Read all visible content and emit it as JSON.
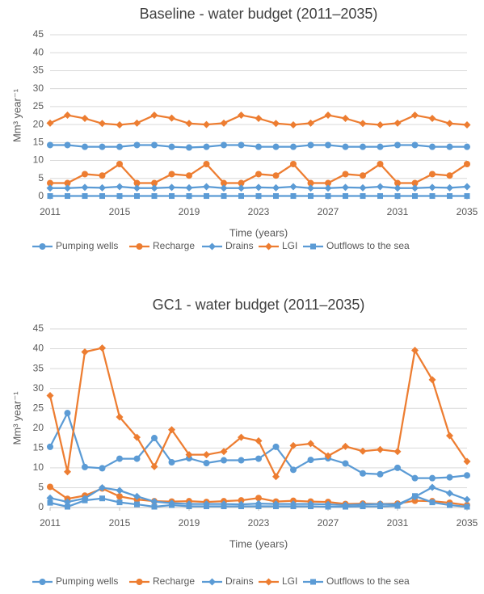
{
  "chart_data": [
    {
      "type": "line",
      "title": "Baseline - water budget (2011–2035)",
      "x_label": "Time (years)",
      "y_label": "Mm³ year⁻¹",
      "x": [
        2011,
        2012,
        2013,
        2014,
        2015,
        2016,
        2017,
        2018,
        2019,
        2020,
        2021,
        2022,
        2023,
        2024,
        2025,
        2026,
        2027,
        2028,
        2029,
        2030,
        2031,
        2032,
        2033,
        2034,
        2035
      ],
      "xlim": [
        2011,
        2035
      ],
      "xticks": [
        2011,
        2015,
        2019,
        2023,
        2027,
        2031,
        2035
      ],
      "ylim": [
        0,
        45
      ],
      "yticks": [
        0,
        5,
        10,
        15,
        20,
        25,
        30,
        35,
        40,
        45
      ],
      "grid": true,
      "legend": "bottom",
      "series": [
        {
          "name": "Pumping wells",
          "color": "#5b9bd5",
          "marker": "circle",
          "values": [
            14.3,
            14.3,
            13.8,
            13.8,
            13.8,
            14.3,
            14.3,
            13.8,
            13.6,
            13.8,
            14.3,
            14.3,
            13.8,
            13.8,
            13.8,
            14.3,
            14.3,
            13.8,
            13.8,
            13.8,
            14.3,
            14.3,
            13.8,
            13.8,
            13.8
          ]
        },
        {
          "name": "Recharge",
          "color": "#ed7d31",
          "marker": "circle",
          "values": [
            3.7,
            3.7,
            6.2,
            5.8,
            9.0,
            3.7,
            3.7,
            6.2,
            5.8,
            9.0,
            3.7,
            3.7,
            6.2,
            5.8,
            9.0,
            3.7,
            3.7,
            6.2,
            5.8,
            9.0,
            3.7,
            3.7,
            6.2,
            5.8,
            9.0
          ]
        },
        {
          "name": "Drains",
          "color": "#5b9bd5",
          "marker": "diamond",
          "values": [
            2.3,
            2.3,
            2.5,
            2.4,
            2.7,
            2.3,
            2.3,
            2.5,
            2.4,
            2.7,
            2.3,
            2.3,
            2.5,
            2.4,
            2.7,
            2.3,
            2.3,
            2.5,
            2.4,
            2.7,
            2.3,
            2.3,
            2.5,
            2.4,
            2.7
          ]
        },
        {
          "name": "LGI",
          "color": "#ed7d31",
          "marker": "diamond",
          "values": [
            20.4,
            22.6,
            21.7,
            20.3,
            19.9,
            20.4,
            22.6,
            21.8,
            20.3,
            20.0,
            20.4,
            22.6,
            21.7,
            20.3,
            19.9,
            20.4,
            22.6,
            21.7,
            20.3,
            19.9,
            20.4,
            22.6,
            21.7,
            20.3,
            19.9
          ]
        },
        {
          "name": "Outflows to the sea",
          "color": "#5b9bd5",
          "marker": "square",
          "values": [
            0.1,
            0.1,
            0.1,
            0.1,
            0.1,
            0.1,
            0.1,
            0.1,
            0.1,
            0.1,
            0.1,
            0.1,
            0.1,
            0.1,
            0.1,
            0.1,
            0.1,
            0.1,
            0.1,
            0.1,
            0.1,
            0.1,
            0.1,
            0.1,
            0.1
          ]
        }
      ]
    },
    {
      "type": "line",
      "title": "GC1 - water budget (2011–2035)",
      "x_label": "Time (years)",
      "y_label": "Mm³ year⁻¹",
      "x": [
        2011,
        2012,
        2013,
        2014,
        2015,
        2016,
        2017,
        2018,
        2019,
        2020,
        2021,
        2022,
        2023,
        2024,
        2025,
        2026,
        2027,
        2028,
        2029,
        2030,
        2031,
        2032,
        2033,
        2034,
        2035
      ],
      "xlim": [
        2011,
        2035
      ],
      "xticks": [
        2011,
        2015,
        2019,
        2023,
        2027,
        2031,
        2035
      ],
      "ylim": [
        0,
        45
      ],
      "yticks": [
        0,
        5,
        10,
        15,
        20,
        25,
        30,
        35,
        40,
        45
      ],
      "grid": true,
      "legend": "bottom",
      "series": [
        {
          "name": "Pumping wells",
          "color": "#5b9bd5",
          "marker": "circle",
          "values": [
            15.3,
            23.8,
            10.2,
            9.9,
            12.3,
            12.3,
            17.5,
            11.4,
            12.4,
            11.2,
            11.9,
            11.9,
            12.3,
            15.3,
            9.5,
            12.0,
            12.4,
            11.1,
            8.6,
            8.4,
            10.0,
            7.4,
            7.4,
            7.6,
            8.1
          ]
        },
        {
          "name": "Recharge",
          "color": "#ed7d31",
          "marker": "circle",
          "values": [
            5.2,
            2.2,
            3.0,
            4.8,
            2.8,
            2.0,
            1.6,
            1.5,
            1.6,
            1.4,
            1.6,
            1.8,
            2.4,
            1.5,
            1.7,
            1.5,
            1.4,
            0.9,
            1.0,
            0.9,
            1.0,
            1.7,
            1.6,
            1.2,
            0.6
          ]
        },
        {
          "name": "Drains",
          "color": "#5b9bd5",
          "marker": "diamond",
          "values": [
            2.4,
            1.4,
            2.3,
            5.0,
            4.3,
            2.8,
            1.5,
            1.1,
            0.9,
            0.9,
            0.9,
            0.8,
            1.0,
            0.9,
            0.9,
            0.9,
            0.8,
            0.6,
            0.8,
            0.9,
            0.8,
            2.7,
            5.1,
            3.6,
            2.0
          ]
        },
        {
          "name": "LGI",
          "color": "#ed7d31",
          "marker": "diamond",
          "values": [
            28.2,
            9.0,
            39.2,
            40.2,
            22.8,
            17.7,
            10.3,
            19.6,
            13.3,
            13.3,
            14.1,
            17.7,
            16.8,
            7.8,
            15.6,
            16.1,
            13.0,
            15.4,
            14.2,
            14.6,
            14.1,
            39.6,
            32.2,
            18.1,
            11.6
          ]
        },
        {
          "name": "Outflows to the sea",
          "color": "#5b9bd5",
          "marker": "square",
          "values": [
            1.2,
            0.2,
            1.8,
            2.3,
            1.3,
            0.8,
            0.2,
            0.6,
            0.3,
            0.3,
            0.3,
            0.3,
            0.3,
            0.3,
            0.3,
            0.3,
            0.2,
            0.2,
            0.3,
            0.3,
            0.4,
            2.9,
            1.3,
            0.6,
            0.2
          ]
        }
      ]
    }
  ]
}
